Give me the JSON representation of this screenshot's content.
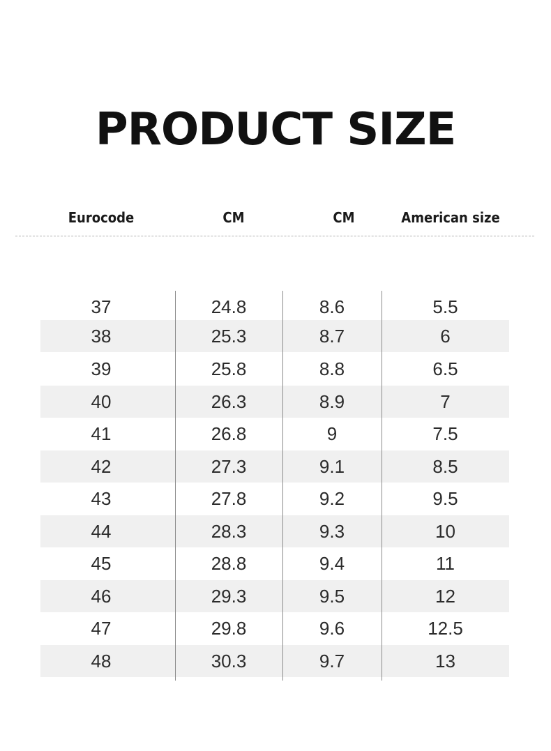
{
  "title": "PRODUCT SIZE",
  "headers": [
    "Eurocode",
    "CM",
    "CM",
    "American size"
  ],
  "rows": [
    [
      "37",
      "24.8",
      "8.6",
      "5.5"
    ],
    [
      "38",
      "25.3",
      "8.7",
      "6"
    ],
    [
      "39",
      "25.8",
      "8.8",
      "6.5"
    ],
    [
      "40",
      "26.3",
      "8.9",
      "7"
    ],
    [
      "41",
      "26.8",
      "9",
      "7.5"
    ],
    [
      "42",
      "27.3",
      "9.1",
      "8.5"
    ],
    [
      "43",
      "27.8",
      "9.2",
      "9.5"
    ],
    [
      "44",
      "28.3",
      "9.3",
      "10"
    ],
    [
      "45",
      "28.8",
      "9.4",
      "11"
    ],
    [
      "46",
      "29.3",
      "9.5",
      "12"
    ],
    [
      "47",
      "29.8",
      "9.6",
      "12.5"
    ],
    [
      "48",
      "30.3",
      "9.7",
      "13"
    ]
  ],
  "colors": {
    "shade": "#f0f0f0",
    "text": "#2b2b2b",
    "rule": "#8a8a8a"
  }
}
